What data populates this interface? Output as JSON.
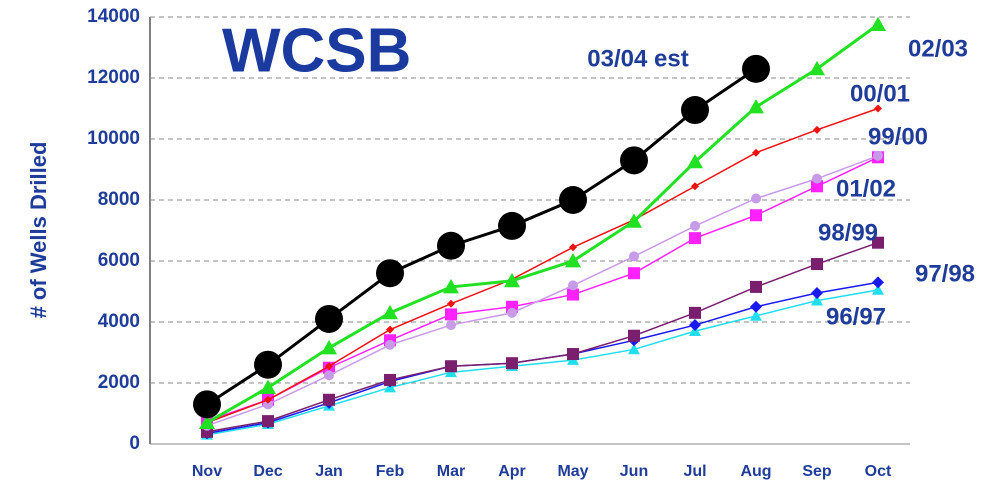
{
  "chart_data": {
    "type": "line",
    "title": "WCSB",
    "ylabel": "# of Wells Drilled",
    "categories": [
      "Nov",
      "Dec",
      "Jan",
      "Feb",
      "Mar",
      "Apr",
      "May",
      "Jun",
      "Jul",
      "Aug",
      "Sep",
      "Oct"
    ],
    "ylim": [
      0,
      14000
    ],
    "yticks": [
      0,
      2000,
      4000,
      6000,
      8000,
      10000,
      12000,
      14000
    ],
    "grid": true,
    "series": [
      {
        "name": "03/04 est",
        "color": "#000000",
        "marker": "circle",
        "values": [
          1300,
          2600,
          4100,
          5600,
          6500,
          7150,
          8000,
          9300,
          10950,
          12300,
          null,
          null
        ]
      },
      {
        "name": "02/03",
        "color": "#22e022",
        "marker": "triangle",
        "values": [
          700,
          1850,
          3150,
          4300,
          5150,
          5350,
          6000,
          7300,
          9250,
          11050,
          12300,
          13750
        ]
      },
      {
        "name": "00/01",
        "color": "#ee1111",
        "marker": "diamond",
        "values": [
          700,
          1450,
          2550,
          3750,
          4600,
          5400,
          6450,
          7350,
          8450,
          9550,
          10300,
          11000
        ]
      },
      {
        "name": "99/00",
        "color": "#c89be8",
        "marker": "circle",
        "values": [
          600,
          1300,
          2250,
          3250,
          3900,
          4300,
          5200,
          6150,
          7150,
          8050,
          8700,
          9450
        ]
      },
      {
        "name": "01/02",
        "color": "#ff22ff",
        "marker": "square",
        "values": [
          750,
          1450,
          2500,
          3400,
          4250,
          4500,
          4900,
          5600,
          6750,
          7500,
          8450,
          9400
        ]
      },
      {
        "name": "98/99",
        "color": "#7a1f6e",
        "marker": "square",
        "values": [
          400,
          750,
          1450,
          2100,
          2550,
          2650,
          2950,
          3550,
          4300,
          5150,
          5900,
          6600
        ]
      },
      {
        "name": "97/98",
        "color": "#1a1aee",
        "marker": "diamond",
        "values": [
          350,
          700,
          1350,
          2050,
          2550,
          2650,
          2950,
          3400,
          3900,
          4500,
          4950,
          5300
        ]
      },
      {
        "name": "96/97",
        "color": "#22ddee",
        "marker": "triangle",
        "values": [
          300,
          650,
          1250,
          1850,
          2350,
          2550,
          2750,
          3100,
          3700,
          4200,
          4700,
          5050
        ]
      }
    ]
  }
}
